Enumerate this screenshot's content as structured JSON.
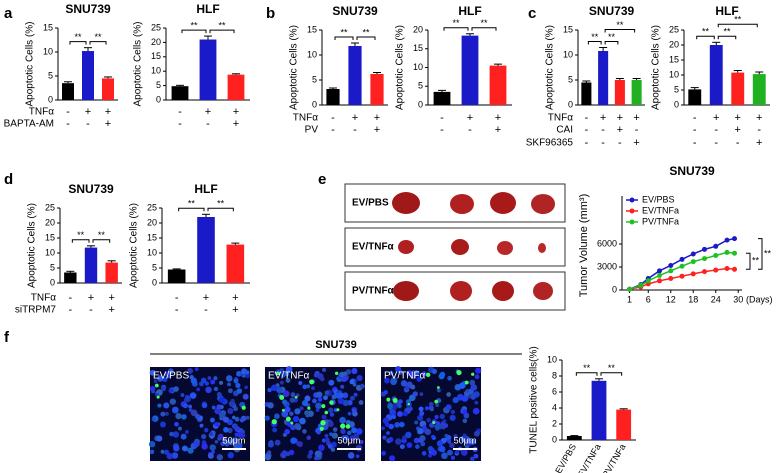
{
  "panels": [
    {
      "letter": "a",
      "conditions": [
        "TNFα",
        "BAPTA-AM"
      ]
    },
    {
      "letter": "b",
      "conditions": [
        "TNFα",
        "PV"
      ]
    },
    {
      "letter": "c",
      "conditions": [
        "TNFα",
        "CAI",
        "SKF96365"
      ]
    },
    {
      "letter": "d",
      "conditions": [
        "TNFα",
        "siTRPM7"
      ]
    },
    {
      "letter": "e"
    },
    {
      "letter": "f"
    }
  ],
  "chart_data": [
    {
      "type": "bar",
      "title": "SNU739",
      "y_label": "Apoptotic Cells (%)",
      "values": [
        3.5,
        10.2,
        4.5
      ],
      "errors": [
        0.3,
        0.7,
        0.3
      ],
      "colors": [
        "#000000",
        "#1a1ac8",
        "#ff2020"
      ],
      "ylim": [
        0,
        15
      ],
      "yticks": [
        0,
        5,
        10,
        15
      ],
      "signs": [
        [
          "-",
          "+",
          "+"
        ],
        [
          "-",
          "-",
          "+"
        ]
      ],
      "significance": [
        "**",
        "**"
      ]
    },
    {
      "type": "bar",
      "title": "HLF",
      "y_label": "Apoptotic Cells (%)",
      "values": [
        4.8,
        21,
        8.8
      ],
      "errors": [
        0.3,
        1.2,
        0.3
      ],
      "colors": [
        "#000000",
        "#1a1ac8",
        "#ff2020"
      ],
      "ylim": [
        0,
        25
      ],
      "yticks": [
        0,
        5,
        10,
        15,
        20,
        25
      ],
      "signs": [
        [
          "-",
          "+",
          "+"
        ],
        [
          "-",
          "-",
          "+"
        ]
      ],
      "significance": [
        "**",
        "**"
      ]
    },
    {
      "type": "bar",
      "title": "SNU739",
      "y_label": "Apoptotic Cells (%)",
      "values": [
        3.2,
        11.8,
        6.2
      ],
      "errors": [
        0.2,
        0.6,
        0.3
      ],
      "colors": [
        "#000000",
        "#1a1ac8",
        "#ff2020"
      ],
      "ylim": [
        0,
        15
      ],
      "yticks": [
        0,
        5,
        10,
        15
      ],
      "signs": [
        [
          "-",
          "+",
          "+"
        ],
        [
          "-",
          "-",
          "+"
        ]
      ],
      "significance": [
        "**",
        "**"
      ]
    },
    {
      "type": "bar",
      "title": "HLF",
      "y_label": "Apoptotic Cells (%)",
      "values": [
        3.5,
        18.5,
        10.5
      ],
      "errors": [
        0.4,
        0.5,
        0.4
      ],
      "colors": [
        "#000000",
        "#1a1ac8",
        "#ff2020"
      ],
      "ylim": [
        0,
        20
      ],
      "yticks": [
        0,
        5,
        10,
        15,
        20
      ],
      "signs": [
        [
          "-",
          "+",
          "+"
        ],
        [
          "-",
          "-",
          "+"
        ]
      ],
      "significance": [
        "**",
        "**"
      ]
    },
    {
      "type": "bar",
      "title": "SNU739",
      "y_label": "Apoptotic Cells (%)",
      "values": [
        4.5,
        10.8,
        5,
        5
      ],
      "errors": [
        0.3,
        0.7,
        0.3,
        0.3
      ],
      "colors": [
        "#000000",
        "#1a1ac8",
        "#ff2020",
        "#20b020"
      ],
      "ylim": [
        0,
        15
      ],
      "yticks": [
        0,
        5,
        10,
        15
      ],
      "signs": [
        [
          "-",
          "+",
          "+",
          "+"
        ],
        [
          "-",
          "-",
          "+",
          "-"
        ],
        [
          "-",
          "-",
          "-",
          "+"
        ]
      ],
      "significance": [
        "**",
        "**",
        "**"
      ]
    },
    {
      "type": "bar",
      "title": "HLF",
      "y_label": "Apoptotic Cells (%)",
      "values": [
        5.2,
        20,
        10.8,
        10.3
      ],
      "errors": [
        0.6,
        0.9,
        0.7,
        0.7
      ],
      "colors": [
        "#000000",
        "#1a1ac8",
        "#ff2020",
        "#20b020"
      ],
      "ylim": [
        0,
        25
      ],
      "yticks": [
        0,
        5,
        10,
        15,
        20,
        25
      ],
      "signs": [
        [
          "-",
          "+",
          "+",
          "+"
        ],
        [
          "-",
          "-",
          "+",
          "-"
        ],
        [
          "-",
          "-",
          "-",
          "+"
        ]
      ],
      "significance": [
        "**",
        "**",
        "**"
      ]
    },
    {
      "type": "bar",
      "title": "SNU739",
      "y_label": "Apoptotic Cells (%)",
      "values": [
        3.5,
        11.8,
        6.8
      ],
      "errors": [
        0.4,
        0.6,
        0.6
      ],
      "colors": [
        "#000000",
        "#1a1ac8",
        "#ff2020"
      ],
      "ylim": [
        0,
        25
      ],
      "yticks": [
        0,
        5,
        10,
        15,
        20,
        25
      ],
      "signs": [
        [
          "-",
          "+",
          "+"
        ],
        [
          "-",
          "-",
          "+"
        ]
      ],
      "significance": [
        "**",
        "**"
      ]
    },
    {
      "type": "bar",
      "title": "HLF",
      "y_label": "Apoptotic Cells (%)",
      "values": [
        4.5,
        22,
        12.8
      ],
      "errors": [
        0.2,
        0.9,
        0.5
      ],
      "colors": [
        "#000000",
        "#1a1ac8",
        "#ff2020"
      ],
      "ylim": [
        0,
        25
      ],
      "yticks": [
        0,
        5,
        10,
        15,
        20,
        25
      ],
      "signs": [
        [
          "-",
          "+",
          "+"
        ],
        [
          "-",
          "-",
          "+"
        ]
      ],
      "significance": [
        "**",
        "**"
      ]
    },
    {
      "type": "line",
      "title": "SNU739",
      "y_label": "Tumor Volume (mm³)",
      "x_label": "(Days)",
      "x": [
        1,
        4,
        6,
        9,
        12,
        15,
        18,
        21,
        24,
        27,
        29
      ],
      "series": [
        {
          "name": "EV/PBS",
          "color": "#1a1ac8",
          "values": [
            100,
            700,
            1500,
            2500,
            3200,
            4000,
            4700,
            5300,
            5700,
            6500,
            6700
          ]
        },
        {
          "name": "EV/TNFa",
          "color": "#ff2020",
          "values": [
            100,
            400,
            800,
            1200,
            1500,
            1800,
            2100,
            2400,
            2600,
            2800,
            2700
          ]
        },
        {
          "name": "PV/TNFa",
          "color": "#20c020",
          "values": [
            100,
            600,
            1200,
            1900,
            2500,
            3100,
            3700,
            4100,
            4500,
            4900,
            4800
          ]
        }
      ],
      "xlim": [
        -1,
        31
      ],
      "xticks": [
        1,
        6,
        12,
        18,
        24,
        30
      ],
      "ylim": [
        0,
        9000
      ],
      "yticks": [
        0,
        3000,
        6000
      ],
      "significance": [
        "**",
        "**"
      ]
    },
    {
      "type": "bar",
      "y_label": "TUNEL positive cells(%)",
      "categories": [
        "EV/PBS",
        "EV/TNFa",
        "PV/TNFa"
      ],
      "values": [
        0.5,
        7.4,
        3.8
      ],
      "errors": [
        0.05,
        0.25,
        0.1
      ],
      "colors": [
        "#000000",
        "#1a1ac8",
        "#ff2020"
      ],
      "ylim": [
        0,
        10
      ],
      "yticks": [
        0,
        2,
        4,
        6,
        8,
        10
      ],
      "significance": [
        "**",
        "**"
      ]
    }
  ],
  "tumor_photo": {
    "groups": [
      "EV/PBS",
      "EV/TNFα",
      "PV/TNFα"
    ]
  },
  "tunel_images": {
    "title": "SNU739",
    "groups": [
      "EV/PBS",
      "EV/TNFα",
      "PV/TNFα"
    ],
    "scale_bar": "50μm"
  }
}
